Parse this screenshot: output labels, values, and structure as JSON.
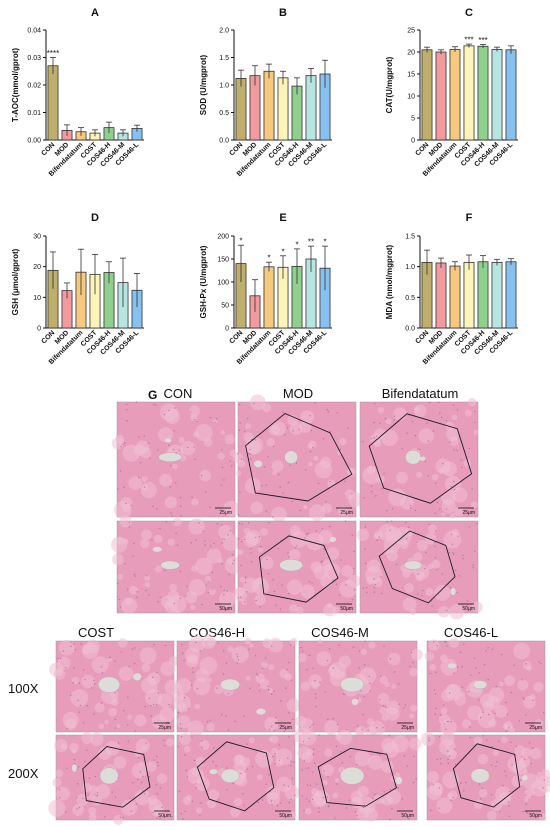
{
  "chart_data": [
    {
      "type": "bar",
      "panel_label": "A",
      "ylabel": "T-AOC(mmol/gprot)",
      "ylim": [
        0,
        0.04
      ],
      "yticks": [
        "0.00",
        "0.01",
        "0.02",
        "0.03",
        "0.04"
      ],
      "categories": [
        "CON",
        "MOD",
        "Bifendatatum",
        "COST",
        "COS46-H",
        "COS46-M",
        "COS46-L"
      ],
      "values": [
        0.027,
        0.0035,
        0.003,
        0.0025,
        0.0045,
        0.0025,
        0.0042
      ],
      "errors": [
        0.003,
        0.002,
        0.0015,
        0.0012,
        0.002,
        0.0012,
        0.0012
      ],
      "annotations": [
        "****",
        "",
        "",
        "",
        "",
        "",
        ""
      ]
    },
    {
      "type": "bar",
      "panel_label": "B",
      "ylabel": "SOD (U/mgprot)",
      "ylim": [
        0,
        2.0
      ],
      "yticks": [
        "0.0",
        "0.5",
        "1.0",
        "1.5",
        "2.0"
      ],
      "categories": [
        "CON",
        "MOD",
        "Bifendatatum",
        "COST",
        "COS46-H",
        "COS46-M",
        "COS46-L"
      ],
      "values": [
        1.12,
        1.17,
        1.25,
        1.13,
        0.98,
        1.17,
        1.2
      ],
      "errors": [
        0.15,
        0.18,
        0.13,
        0.12,
        0.15,
        0.13,
        0.25
      ],
      "annotations": [
        "",
        "",
        "",
        "",
        "",
        "",
        ""
      ]
    },
    {
      "type": "bar",
      "panel_label": "C",
      "ylabel": "CAT(U/mgprot)",
      "ylim": [
        0,
        25
      ],
      "yticks": [
        "0",
        "5",
        "10",
        "15",
        "20",
        "25"
      ],
      "categories": [
        "CON",
        "MOD",
        "Bifendatatum",
        "COST",
        "COS46-H",
        "COS46-M",
        "COS46-L"
      ],
      "values": [
        20.5,
        20.0,
        20.6,
        21.4,
        21.3,
        20.6,
        20.5
      ],
      "errors": [
        0.6,
        0.5,
        0.6,
        0.4,
        0.4,
        0.5,
        0.9
      ],
      "annotations": [
        "",
        "",
        "",
        "***",
        "***",
        "",
        ""
      ]
    },
    {
      "type": "bar",
      "panel_label": "D",
      "ylabel": "GSH (μmol/gprot)",
      "ylim": [
        0,
        30
      ],
      "yticks": [
        "0",
        "10",
        "20",
        "30"
      ],
      "categories": [
        "CON",
        "MOD",
        "Bifendatatum",
        "COST",
        "COS46-H",
        "COS46-M",
        "COS46-L"
      ],
      "values": [
        18.8,
        12.2,
        18.2,
        17.5,
        18.1,
        14.8,
        12.3
      ],
      "errors": [
        6.0,
        2.5,
        7.5,
        6.5,
        3.5,
        8.0,
        5.5
      ],
      "annotations": [
        "",
        "",
        "",
        "",
        "",
        "",
        ""
      ]
    },
    {
      "type": "bar",
      "panel_label": "E",
      "ylabel": "GSH-Px (U/mgprot)",
      "ylim": [
        0,
        200
      ],
      "yticks": [
        "0",
        "50",
        "100",
        "150",
        "200"
      ],
      "categories": [
        "CON",
        "MOD",
        "Bifendatatum",
        "COST",
        "COS46-H",
        "COS46-M",
        "COS46-L"
      ],
      "values": [
        140,
        70,
        133,
        132,
        134,
        150,
        130
      ],
      "errors": [
        40,
        35,
        10,
        25,
        38,
        28,
        48
      ],
      "annotations": [
        "*",
        "",
        "*",
        "*",
        "*",
        "**",
        "*"
      ]
    },
    {
      "type": "bar",
      "panel_label": "F",
      "ylabel": "MDA (nmol/mgprot)",
      "ylim": [
        0,
        1.5
      ],
      "yticks": [
        "0.0",
        "0.5",
        "1.0",
        "1.5"
      ],
      "categories": [
        "CON",
        "MOD",
        "Bifendatatum",
        "COST",
        "COS46-H",
        "COS46-M",
        "COS46-L"
      ],
      "values": [
        1.07,
        1.06,
        1.01,
        1.07,
        1.08,
        1.07,
        1.08
      ],
      "errors": [
        0.2,
        0.08,
        0.07,
        0.12,
        0.1,
        0.05,
        0.05
      ],
      "annotations": [
        "",
        "",
        "",
        "",
        "",
        "",
        ""
      ]
    }
  ],
  "bar_colors": [
    "#bfae6c",
    "#f29a9e",
    "#f6c97e",
    "#fdf5b8",
    "#8fd08c",
    "#b7e6e0",
    "#86c1f0"
  ],
  "histology": {
    "panel_label": "G",
    "top_groups": [
      "CON",
      "MOD",
      "Bifendatatum"
    ],
    "bottom_groups": [
      "COST",
      "COS46-H",
      "COS46-M",
      "COS46-L"
    ],
    "magnifications": [
      "100X",
      "200X"
    ],
    "scale_100x": "25μm",
    "scale_200x": "50μm",
    "tissue_color": "#e79cba",
    "tissue_light": "#f0bfd2",
    "vessel_color": "#dcdcd8"
  }
}
